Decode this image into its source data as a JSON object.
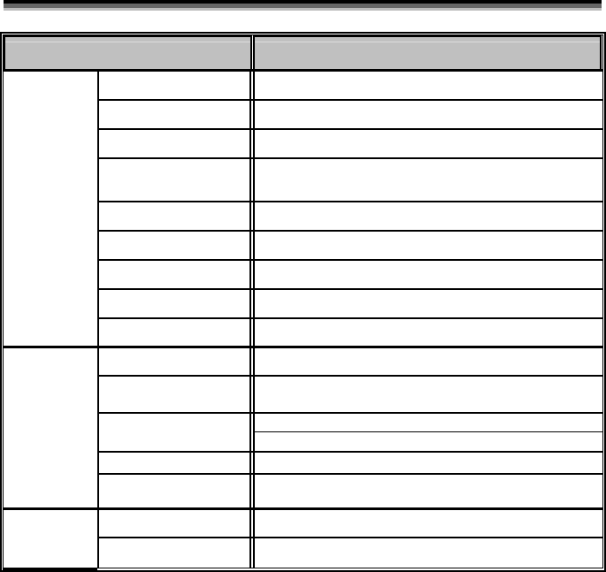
{
  "colors": {
    "header_fill": "#c0c0c0",
    "rule_dark": "#000000",
    "rule_mid": "#666666",
    "rule_light": "#bbbbbb"
  },
  "table": {
    "header": [
      "",
      ""
    ],
    "groups": [
      {
        "label": "",
        "rows": 9
      },
      {
        "label": "",
        "rows": 5
      },
      {
        "label": "",
        "rows": 2
      }
    ]
  }
}
